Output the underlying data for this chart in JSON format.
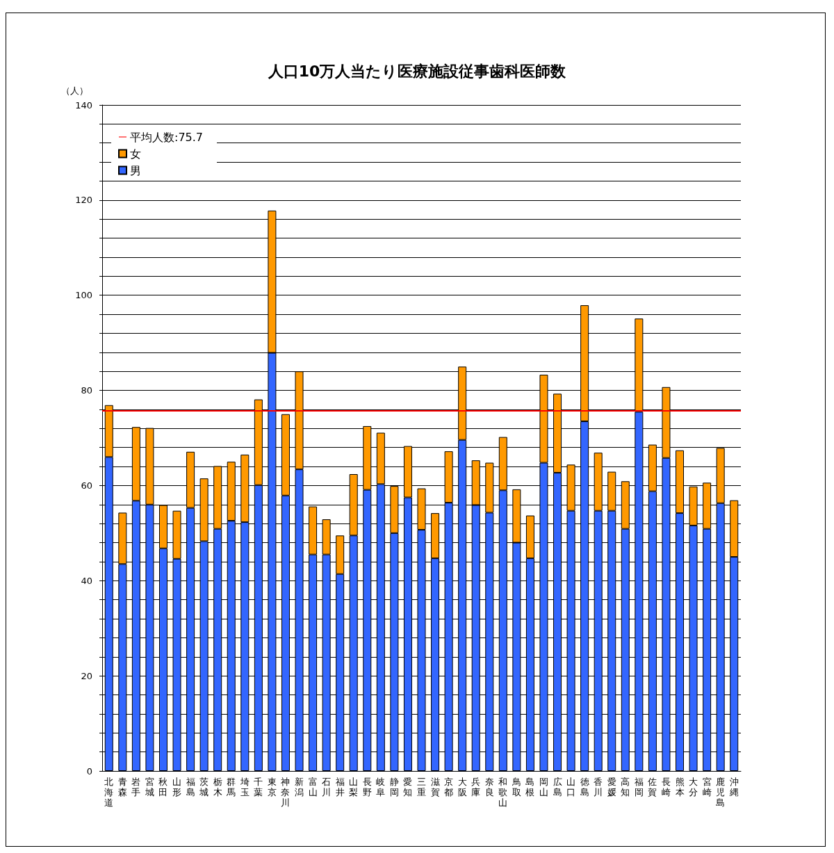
{
  "chart_data": {
    "type": "bar",
    "title": "人口10万人当たり医療施設従事歯科医師数",
    "ylabel": "（人）",
    "categories": [
      "北海道",
      "青森",
      "岩手",
      "宮城",
      "秋田",
      "山形",
      "福島",
      "茨城",
      "栃木",
      "群馬",
      "埼玉",
      "千葉",
      "東京",
      "神奈川",
      "新潟",
      "富山",
      "石川",
      "福井",
      "山梨",
      "長野",
      "岐阜",
      "静岡",
      "愛知",
      "三重",
      "滋賀",
      "京都",
      "大阪",
      "兵庫",
      "奈良",
      "和歌山",
      "鳥取",
      "島根",
      "岡山",
      "広島",
      "山口",
      "徳島",
      "香川",
      "愛媛",
      "高知",
      "福岡",
      "佐賀",
      "長崎",
      "熊本",
      "大分",
      "宮崎",
      "鹿児島",
      "沖縄"
    ],
    "stacked": true,
    "series": [
      {
        "name": "男",
        "color": "#3366ff",
        "values": [
          66.0,
          43.5,
          56.8,
          56.0,
          46.8,
          44.6,
          55.3,
          48.3,
          50.9,
          52.6,
          52.3,
          60.1,
          87.9,
          57.9,
          63.4,
          45.5,
          45.5,
          41.4,
          49.5,
          59.1,
          60.3,
          50.0,
          57.5,
          50.7,
          44.7,
          56.4,
          69.6,
          55.9,
          54.3,
          59.0,
          48.0,
          44.7,
          64.8,
          62.7,
          54.7,
          73.5,
          54.7,
          54.7,
          50.9,
          75.5,
          58.8,
          65.8,
          54.2,
          51.6,
          50.9,
          56.3,
          45.0
        ]
      },
      {
        "name": "女",
        "color": "#ff9900",
        "values": [
          10.9,
          10.8,
          15.5,
          16.1,
          9.1,
          10.1,
          11.8,
          13.2,
          13.2,
          12.4,
          14.2,
          18.0,
          29.9,
          17.1,
          20.6,
          10.1,
          7.4,
          8.1,
          12.9,
          13.4,
          10.8,
          9.9,
          10.8,
          8.7,
          9.5,
          10.8,
          15.4,
          9.4,
          10.5,
          11.2,
          11.2,
          9.0,
          18.5,
          16.6,
          9.7,
          24.4,
          12.2,
          8.2,
          10.0,
          19.6,
          9.8,
          14.9,
          13.2,
          8.2,
          9.7,
          11.6,
          11.9
        ]
      }
    ],
    "ref_lines": [
      {
        "axis": "y",
        "value": 75.7,
        "label": "平均人数:75.7",
        "color": "#ff0000"
      }
    ],
    "ylim": [
      0,
      140
    ],
    "yticks": [
      0,
      {
        "value": 4,
        "label": null
      },
      {
        "value": 8,
        "label": null
      },
      {
        "value": 12,
        "label": null
      },
      {
        "value": 16,
        "label": null
      },
      20,
      {
        "value": 24,
        "label": null
      },
      {
        "value": 28,
        "label": null
      },
      {
        "value": 32,
        "label": null
      },
      {
        "value": 36,
        "label": null
      },
      40,
      {
        "value": 44,
        "label": null
      },
      {
        "value": 48,
        "label": null
      },
      {
        "value": 52,
        "label": null
      },
      {
        "value": 56,
        "label": null
      },
      60,
      {
        "value": 64,
        "label": null
      },
      {
        "value": 68,
        "label": null
      },
      {
        "value": 72,
        "label": null
      },
      {
        "value": 76,
        "label": null
      },
      80,
      {
        "value": 84,
        "label": null
      },
      {
        "value": 88,
        "label": null
      },
      {
        "value": 92,
        "label": null
      },
      {
        "value": 96,
        "label": null
      },
      100,
      {
        "value": 104,
        "label": null
      },
      {
        "value": 108,
        "label": null
      },
      {
        "value": 112,
        "label": null
      },
      {
        "value": 116,
        "label": null
      },
      120,
      {
        "value": 124,
        "label": null
      },
      {
        "value": 128,
        "label": null
      },
      {
        "value": 132,
        "label": null
      },
      {
        "value": 136,
        "label": null
      },
      140
    ],
    "grid": "y",
    "legend": "top left"
  }
}
